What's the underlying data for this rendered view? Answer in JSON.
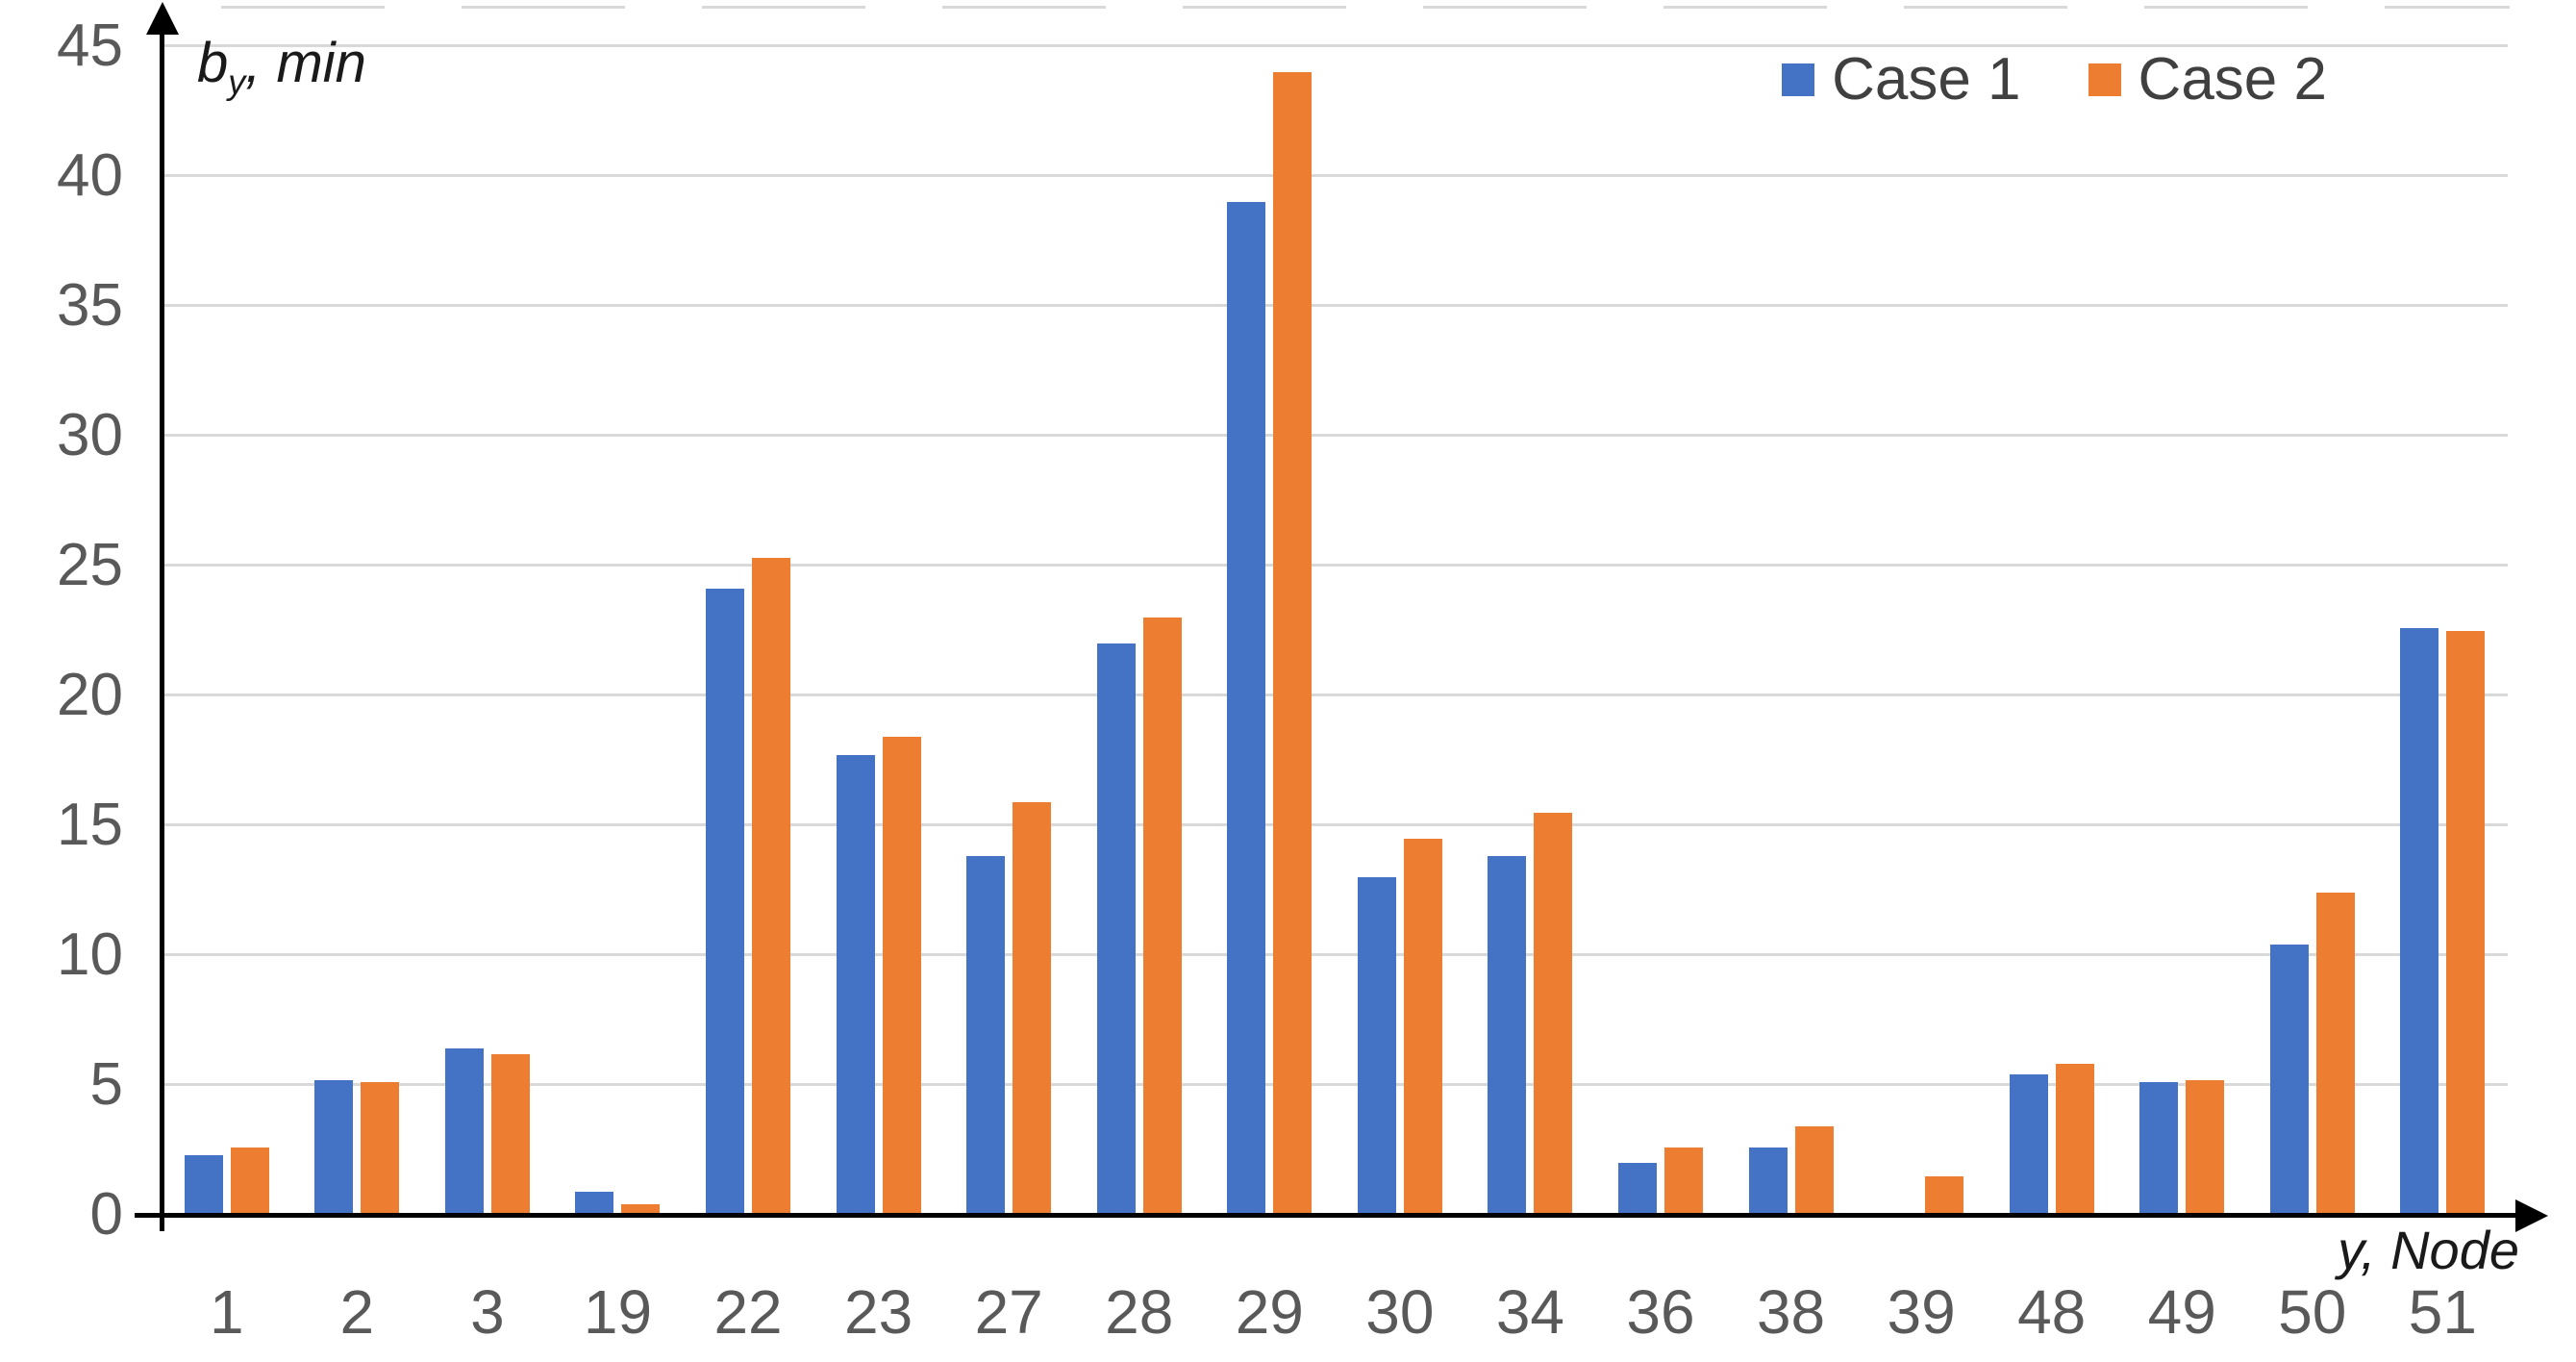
{
  "chart_data": {
    "type": "bar",
    "title": "",
    "ylabel": "b_y, min",
    "xlabel": "y, Node",
    "axis_titles": {
      "y_base": "b",
      "y_sub": "y",
      "y_rest": ", min",
      "x": "y, Node"
    },
    "categories": [
      "1",
      "2",
      "3",
      "19",
      "22",
      "23",
      "27",
      "28",
      "29",
      "30",
      "34",
      "36",
      "38",
      "39",
      "48",
      "49",
      "50",
      "51"
    ],
    "series": [
      {
        "name": "Case 1",
        "color": "#4472C4",
        "values": [
          2.3,
          5.2,
          6.4,
          0.9,
          24.1,
          17.7,
          13.8,
          22.0,
          39.0,
          13.0,
          13.8,
          2.0,
          2.6,
          0,
          5.4,
          5.1,
          10.4,
          22.6
        ]
      },
      {
        "name": "Case 2",
        "color": "#ED7D31",
        "values": [
          2.6,
          5.1,
          6.2,
          0.4,
          25.3,
          18.4,
          15.9,
          23.0,
          44.0,
          14.5,
          15.5,
          2.6,
          3.4,
          1.5,
          5.8,
          5.2,
          12.4,
          22.5
        ]
      }
    ],
    "ylim": [
      0,
      45
    ],
    "yticks": [
      0,
      5,
      10,
      15,
      20,
      25,
      30,
      35,
      40,
      45
    ],
    "grid": true,
    "legend_position": "top-right",
    "colors": {
      "grid": "#D9D9D9",
      "tick_text": "#595959",
      "legend_text": "#404040",
      "axis": "#000000",
      "background": "#FFFFFF"
    }
  }
}
